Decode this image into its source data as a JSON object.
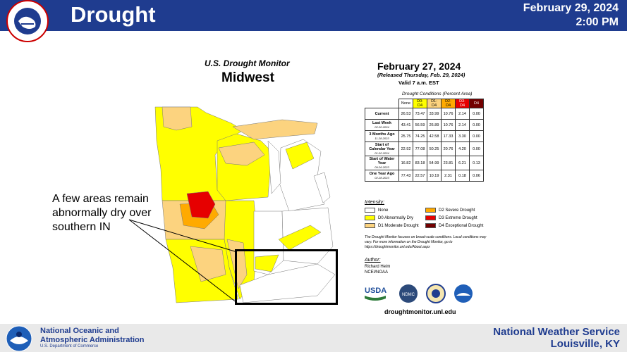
{
  "header": {
    "title": "Drought",
    "date": "February 29, 2024",
    "time": "2:00 PM",
    "logo_text": "NATIONAL WEATHER SERVICE",
    "logo_icon": "nws-logo-icon"
  },
  "map": {
    "subtitle": "U.S. Drought Monitor",
    "region": "Midwest",
    "callout": "A few areas remain abnormally dry over southern IN"
  },
  "info": {
    "map_date": "February 27, 2024",
    "released": "(Released Thursday, Feb. 29, 2024)",
    "valid": "Valid 7 a.m. EST",
    "table_title": "Drought Conditions (Percent Area)",
    "table": {
      "headers": [
        "None",
        "D0-D4",
        "D1-D4",
        "D2-D4",
        "D3-D4",
        "D4"
      ],
      "header_colors": [
        "#ffffff",
        "#ffff00",
        "#fcd37f",
        "#ffaa00",
        "#e60000",
        "#730000"
      ],
      "rows": [
        {
          "label": "Current",
          "sub": "",
          "values": [
            "26.53",
            "73.47",
            "33.99",
            "10.76",
            "2.14",
            "0.00"
          ]
        },
        {
          "label": "Last Week",
          "sub": "02-20-2024",
          "values": [
            "43.41",
            "56.59",
            "26.89",
            "10.76",
            "2.14",
            "0.00"
          ]
        },
        {
          "label": "3 Months Ago",
          "sub": "11-28-2023",
          "values": [
            "25.75",
            "74.25",
            "42.58",
            "17.33",
            "3.30",
            "0.00"
          ]
        },
        {
          "label": "Start of Calendar Year",
          "sub": "01-02-2024",
          "values": [
            "22.92",
            "77.08",
            "50.25",
            "20.76",
            "4.20",
            "0.00"
          ]
        },
        {
          "label": "Start of Water Year",
          "sub": "09-26-2023",
          "values": [
            "16.82",
            "83.18",
            "54.99",
            "23.81",
            "6.21",
            "0.13"
          ]
        },
        {
          "label": "One Year Ago",
          "sub": "02-28-2023",
          "values": [
            "77.43",
            "22.57",
            "10.19",
            "2.31",
            "0.18",
            "0.06"
          ]
        }
      ]
    },
    "intensity_title": "Intensity:",
    "legend": [
      {
        "label": "None",
        "color": "#ffffff"
      },
      {
        "label": "D0 Abnormally Dry",
        "color": "#ffff00"
      },
      {
        "label": "D1 Moderate Drought",
        "color": "#fcd37f"
      },
      {
        "label": "D2 Severe Drought",
        "color": "#ffaa00"
      },
      {
        "label": "D3 Extreme Drought",
        "color": "#e60000"
      },
      {
        "label": "D4 Exceptional Drought",
        "color": "#730000"
      }
    ],
    "note": "The Drought Monitor focuses on broad-scale conditions. Local conditions may vary. For more information on the Drought Monitor, go to https://droughtmonitor.unl.edu/About.aspx",
    "author_title": "Author:",
    "author_name": "Richard Heim",
    "author_org": "NCEI/NOAA",
    "logos": [
      "USDA",
      "NDMC",
      "NOAA"
    ],
    "url": "droughtmonitor.unl.edu"
  },
  "footer": {
    "noaa_name_1": "National Oceanic and",
    "noaa_name_2": "Atmospheric Administration",
    "noaa_dept": "U.S. Department of Commerce",
    "office_1": "National Weather Service",
    "office_2": "Louisville, KY"
  }
}
